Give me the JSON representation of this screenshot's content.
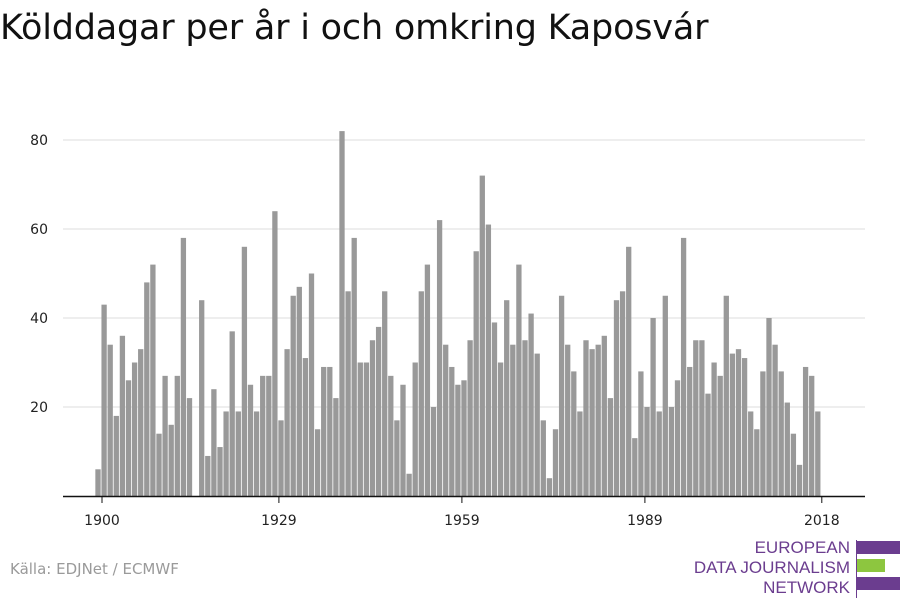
{
  "title": "Kölddagar per år i och omkring Kaposvár",
  "source": "Källa: EDJNet / ECMWF",
  "logo": {
    "lines": [
      "EUROPEAN",
      "DATA JOURNALISM",
      "NETWORK"
    ],
    "colors": {
      "primary": "#6b3d8f",
      "accent": "#8dc63f"
    }
  },
  "colors": {
    "bar": "#999999",
    "grid": "#dddddd",
    "axis": "#111111"
  },
  "chart_data": {
    "type": "bar",
    "title": "Kölddagar per år i och omkring Kaposvár",
    "xlabel": "",
    "ylabel": "",
    "x_ticks": [
      "1900",
      "1929",
      "1959",
      "1989",
      "2018"
    ],
    "y_ticks": [
      20,
      40,
      60,
      80
    ],
    "ylim": [
      0,
      88
    ],
    "grid": true,
    "x": [
      1900,
      1901,
      1902,
      1903,
      1904,
      1905,
      1906,
      1907,
      1908,
      1909,
      1910,
      1911,
      1912,
      1913,
      1914,
      1915,
      1916,
      1917,
      1918,
      1919,
      1920,
      1921,
      1922,
      1923,
      1924,
      1925,
      1926,
      1927,
      1928,
      1929,
      1930,
      1931,
      1932,
      1933,
      1934,
      1935,
      1936,
      1937,
      1938,
      1939,
      1940,
      1941,
      1942,
      1943,
      1944,
      1945,
      1946,
      1947,
      1948,
      1949,
      1950,
      1951,
      1952,
      1953,
      1954,
      1955,
      1956,
      1957,
      1958,
      1959,
      1960,
      1961,
      1962,
      1963,
      1964,
      1965,
      1966,
      1967,
      1968,
      1969,
      1970,
      1971,
      1972,
      1973,
      1974,
      1975,
      1976,
      1977,
      1978,
      1979,
      1980,
      1981,
      1982,
      1983,
      1984,
      1985,
      1986,
      1987,
      1988,
      1989,
      1990,
      1991,
      1992,
      1993,
      1994,
      1995,
      1996,
      1997,
      1998,
      1999,
      2000,
      2001,
      2002,
      2003,
      2004,
      2005,
      2006,
      2007,
      2008,
      2009,
      2010,
      2011,
      2012,
      2013,
      2014,
      2015,
      2016,
      2017,
      2018
    ],
    "values": [
      6,
      43,
      34,
      18,
      36,
      26,
      30,
      33,
      48,
      52,
      14,
      27,
      16,
      27,
      58,
      22,
      0,
      44,
      9,
      24,
      11,
      19,
      37,
      19,
      56,
      25,
      19,
      27,
      27,
      64,
      17,
      33,
      45,
      47,
      31,
      50,
      15,
      29,
      29,
      22,
      82,
      46,
      58,
      30,
      30,
      35,
      38,
      46,
      27,
      17,
      25,
      5,
      30,
      46,
      52,
      20,
      62,
      34,
      29,
      25,
      26,
      35,
      55,
      72,
      61,
      39,
      30,
      44,
      34,
      52,
      35,
      41,
      32,
      17,
      4,
      15,
      45,
      34,
      28,
      19,
      35,
      33,
      34,
      36,
      22,
      44,
      46,
      56,
      13,
      28,
      20,
      40,
      19,
      45,
      20,
      26,
      58,
      29,
      35,
      35,
      23,
      30,
      27,
      45,
      32,
      33,
      31,
      19,
      15,
      28,
      40,
      34,
      28,
      21,
      14,
      7,
      29,
      27,
      19
    ]
  }
}
